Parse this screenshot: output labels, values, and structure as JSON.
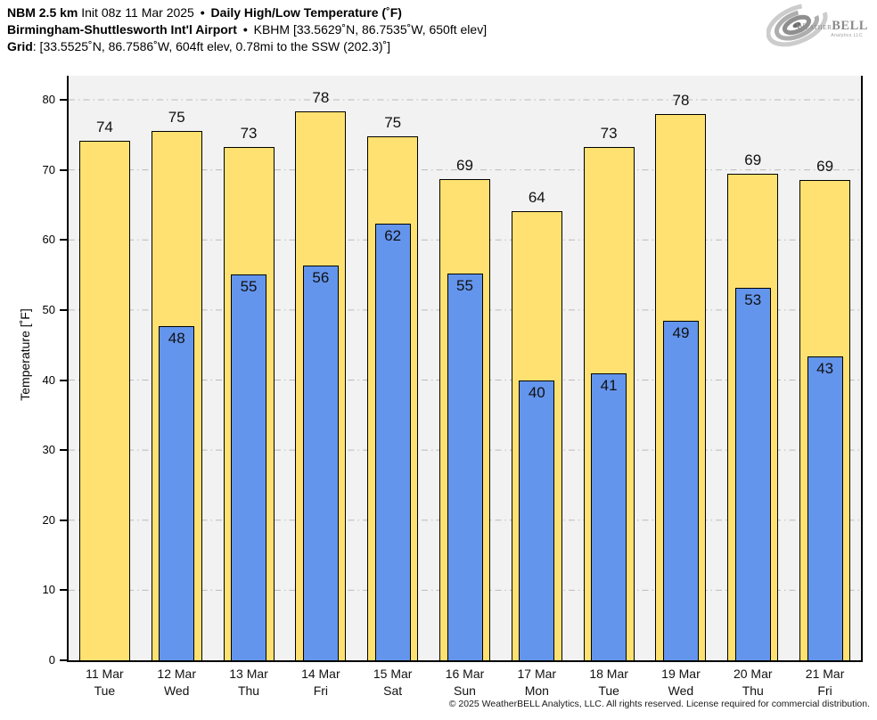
{
  "header": {
    "line1": {
      "model": "NBM 2.5 km",
      "init": "Init 08z 11 Mar 2025",
      "sep": "•",
      "title": "Daily High/Low Temperature (˚F)"
    },
    "line2": {
      "station": "Birmingham-Shuttlesworth Int'l Airport",
      "sep": "•",
      "meta": "KBHM [33.5629˚N, 86.7535˚W, 650ft elev]"
    },
    "line3": {
      "label": "Grid",
      "value": ": [33.5525˚N, 86.7586˚W, 604ft elev, 0.78mi to the SSW (202.3)˚]"
    }
  },
  "logo": {
    "weather": "Weather",
    "bell": "BELL",
    "sub": "Analytics LLC"
  },
  "footer": {
    "copyright": "© 2025 WeatherBELL Analytics, LLC. All rights reserved. License required for commercial distribution."
  },
  "chart_data": {
    "type": "bar",
    "title": "Daily High/Low Temperature (˚F)",
    "ylabel": "Temperature [˚F]",
    "ylim": [
      0,
      83.4
    ],
    "yticks": [
      0,
      10,
      20,
      30,
      40,
      50,
      60,
      70,
      80
    ],
    "grid": true,
    "legend": false,
    "plot_bg": "#F2F2F2",
    "gridline_color": "#BBBBBB",
    "dates": [
      "11 Mar",
      "12 Mar",
      "13 Mar",
      "14 Mar",
      "15 Mar",
      "16 Mar",
      "17 Mar",
      "18 Mar",
      "19 Mar",
      "20 Mar",
      "21 Mar"
    ],
    "weekdays": [
      "Tue",
      "Wed",
      "Thu",
      "Fri",
      "Sat",
      "Sun",
      "Mon",
      "Tue",
      "Wed",
      "Thu",
      "Fri"
    ],
    "series": [
      {
        "name": "High",
        "color": "#FFE172",
        "outline": "#000000",
        "values": [
          74.2,
          75.5,
          73.3,
          78.4,
          74.8,
          68.7,
          64.1,
          73.3,
          78.0,
          69.4,
          68.6
        ],
        "labels": [
          "74",
          "75",
          "73",
          "78",
          "75",
          "69",
          "64",
          "73",
          "78",
          "69",
          "69"
        ]
      },
      {
        "name": "Low",
        "color": "#6495ED",
        "outline": "#000000",
        "values": [
          null,
          47.7,
          55.1,
          56.4,
          62.3,
          55.2,
          39.9,
          41.0,
          48.5,
          53.2,
          43.4
        ],
        "labels": [
          null,
          "48",
          "55",
          "56",
          "62",
          "55",
          "40",
          "41",
          "49",
          "53",
          "43"
        ]
      }
    ]
  }
}
